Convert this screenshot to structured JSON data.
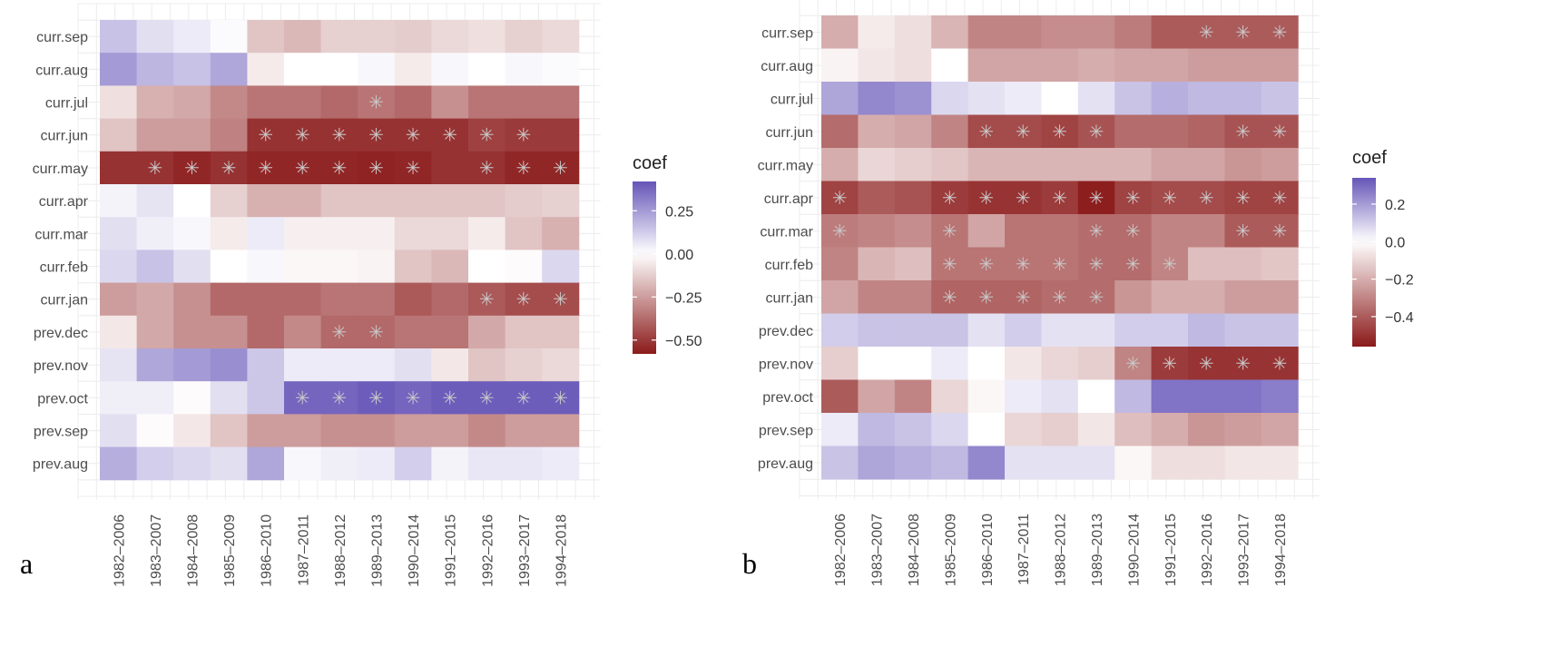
{
  "colors": {
    "low": "#8b1a1a",
    "mid": "#ffffff",
    "high": "#6655b8",
    "star": "#c8c8c8"
  },
  "chart_data": [
    {
      "type": "heatmap",
      "panel_label": "a",
      "legend": {
        "title": "coef",
        "ticks": [
          0.25,
          0.0,
          -0.25,
          -0.5
        ],
        "tick_labels": [
          "0.25",
          "0.00",
          "−0.25",
          "−0.50"
        ],
        "range": [
          -0.58,
          0.42
        ]
      },
      "x": [
        "1982–2006",
        "1983–2007",
        "1984–2008",
        "1985–2009",
        "1986–2010",
        "1987–2011",
        "1988–2012",
        "1989–2013",
        "1990–2014",
        "1991–2015",
        "1992–2016",
        "1993–2017",
        "1994–2018"
      ],
      "y": [
        "curr.sep",
        "curr.aug",
        "curr.jul",
        "curr.jun",
        "curr.may",
        "curr.apr",
        "curr.mar",
        "curr.feb",
        "curr.jan",
        "prev.dec",
        "prev.nov",
        "prev.oct",
        "prev.sep",
        "prev.aug"
      ],
      "values": [
        [
          0.15,
          0.08,
          0.05,
          0.01,
          -0.15,
          -0.18,
          -0.12,
          -0.12,
          -0.13,
          -0.1,
          -0.08,
          -0.12,
          -0.1
        ],
        [
          0.25,
          0.18,
          0.15,
          0.22,
          -0.05,
          0.0,
          0.0,
          0.02,
          -0.05,
          0.02,
          0.0,
          0.02,
          0.01
        ],
        [
          -0.08,
          -0.2,
          -0.22,
          -0.3,
          -0.35,
          -0.35,
          -0.38,
          -0.35,
          -0.38,
          -0.28,
          -0.35,
          -0.35,
          -0.35
        ],
        [
          -0.15,
          -0.25,
          -0.25,
          -0.32,
          -0.52,
          -0.52,
          -0.52,
          -0.52,
          -0.52,
          -0.52,
          -0.48,
          -0.5,
          -0.5
        ],
        [
          -0.52,
          -0.52,
          -0.55,
          -0.52,
          -0.55,
          -0.55,
          -0.55,
          -0.56,
          -0.55,
          -0.52,
          -0.52,
          -0.55,
          -0.55
        ],
        [
          0.03,
          0.07,
          0.0,
          -0.12,
          -0.2,
          -0.2,
          -0.15,
          -0.15,
          -0.15,
          -0.15,
          -0.15,
          -0.13,
          -0.12
        ],
        [
          0.08,
          0.04,
          0.02,
          -0.05,
          0.05,
          -0.04,
          -0.04,
          -0.04,
          -0.1,
          -0.1,
          -0.05,
          -0.15,
          -0.2
        ],
        [
          0.1,
          0.15,
          0.08,
          0.0,
          0.02,
          -0.02,
          -0.02,
          -0.03,
          -0.15,
          -0.18,
          0.0,
          -0.01,
          0.1
        ],
        [
          -0.25,
          -0.22,
          -0.28,
          -0.38,
          -0.38,
          -0.38,
          -0.35,
          -0.35,
          -0.42,
          -0.38,
          -0.42,
          -0.45,
          -0.45
        ],
        [
          -0.06,
          -0.22,
          -0.28,
          -0.28,
          -0.38,
          -0.3,
          -0.38,
          -0.38,
          -0.35,
          -0.35,
          -0.22,
          -0.15,
          -0.15
        ],
        [
          0.07,
          0.22,
          0.25,
          0.28,
          0.14,
          0.05,
          0.05,
          0.05,
          0.08,
          -0.06,
          -0.15,
          -0.12,
          -0.1
        ],
        [
          0.04,
          0.04,
          -0.01,
          0.08,
          0.14,
          0.38,
          0.38,
          0.4,
          0.38,
          0.4,
          0.4,
          0.4,
          0.4
        ],
        [
          0.08,
          -0.01,
          -0.06,
          -0.15,
          -0.25,
          -0.25,
          -0.28,
          -0.28,
          -0.25,
          -0.25,
          -0.3,
          -0.25,
          -0.25
        ],
        [
          0.2,
          0.12,
          0.1,
          0.08,
          0.22,
          0.02,
          0.04,
          0.05,
          0.12,
          0.03,
          0.06,
          0.06,
          0.05
        ]
      ],
      "significant": [
        [
          0,
          0,
          0,
          0,
          0,
          0,
          0,
          0,
          0,
          0,
          0,
          0,
          0
        ],
        [
          0,
          0,
          0,
          0,
          0,
          0,
          0,
          0,
          0,
          0,
          0,
          0,
          0
        ],
        [
          0,
          0,
          0,
          0,
          0,
          0,
          0,
          1,
          0,
          0,
          0,
          0,
          0
        ],
        [
          0,
          0,
          0,
          0,
          1,
          1,
          1,
          1,
          1,
          1,
          1,
          1,
          0
        ],
        [
          0,
          1,
          1,
          1,
          1,
          1,
          1,
          1,
          1,
          0,
          1,
          1,
          1
        ],
        [
          0,
          0,
          0,
          0,
          0,
          0,
          0,
          0,
          0,
          0,
          0,
          0,
          0
        ],
        [
          0,
          0,
          0,
          0,
          0,
          0,
          0,
          0,
          0,
          0,
          0,
          0,
          0
        ],
        [
          0,
          0,
          0,
          0,
          0,
          0,
          0,
          0,
          0,
          0,
          0,
          0,
          0
        ],
        [
          0,
          0,
          0,
          0,
          0,
          0,
          0,
          0,
          0,
          0,
          1,
          1,
          1
        ],
        [
          0,
          0,
          0,
          0,
          0,
          0,
          1,
          1,
          0,
          0,
          0,
          0,
          0
        ],
        [
          0,
          0,
          0,
          0,
          0,
          0,
          0,
          0,
          0,
          0,
          0,
          0,
          0
        ],
        [
          0,
          0,
          0,
          0,
          0,
          1,
          1,
          1,
          1,
          1,
          1,
          1,
          1
        ],
        [
          0,
          0,
          0,
          0,
          0,
          0,
          0,
          0,
          0,
          0,
          0,
          0,
          0
        ],
        [
          0,
          0,
          0,
          0,
          0,
          0,
          0,
          0,
          0,
          0,
          0,
          0,
          0
        ]
      ]
    },
    {
      "type": "heatmap",
      "panel_label": "b",
      "legend": {
        "title": "coef",
        "ticks": [
          0.2,
          0.0,
          -0.2,
          -0.4
        ],
        "tick_labels": [
          "0.2",
          "0.0",
          "−0.2",
          "−0.4"
        ],
        "range": [
          -0.56,
          0.34
        ]
      },
      "x": [
        "1982–2006",
        "1983–2007",
        "1984–2008",
        "1985–2009",
        "1986–2010",
        "1987–2011",
        "1988–2012",
        "1989–2013",
        "1990–2014",
        "1991–2015",
        "1992–2016",
        "1993–2017",
        "1994–2018"
      ],
      "y": [
        "curr.sep",
        "curr.aug",
        "curr.jul",
        "curr.jun",
        "curr.may",
        "curr.apr",
        "curr.mar",
        "curr.feb",
        "curr.jan",
        "prev.dec",
        "prev.nov",
        "prev.oct",
        "prev.sep",
        "prev.aug"
      ],
      "values": [
        [
          -0.2,
          -0.05,
          -0.08,
          -0.18,
          -0.3,
          -0.3,
          -0.28,
          -0.28,
          -0.32,
          -0.4,
          -0.4,
          -0.4,
          -0.4
        ],
        [
          -0.03,
          -0.06,
          -0.08,
          0.0,
          -0.22,
          -0.22,
          -0.22,
          -0.2,
          -0.22,
          -0.22,
          -0.24,
          -0.24,
          -0.24
        ],
        [
          0.18,
          0.24,
          0.22,
          0.08,
          0.06,
          0.04,
          0.0,
          0.06,
          0.12,
          0.16,
          0.14,
          0.14,
          0.12
        ],
        [
          -0.36,
          -0.2,
          -0.22,
          -0.3,
          -0.44,
          -0.44,
          -0.46,
          -0.42,
          -0.36,
          -0.36,
          -0.38,
          -0.42,
          -0.42
        ],
        [
          -0.2,
          -0.1,
          -0.12,
          -0.14,
          -0.18,
          -0.18,
          -0.18,
          -0.18,
          -0.18,
          -0.22,
          -0.22,
          -0.26,
          -0.24
        ],
        [
          -0.46,
          -0.4,
          -0.42,
          -0.48,
          -0.5,
          -0.5,
          -0.48,
          -0.55,
          -0.46,
          -0.44,
          -0.44,
          -0.46,
          -0.46
        ],
        [
          -0.32,
          -0.3,
          -0.28,
          -0.34,
          -0.22,
          -0.34,
          -0.34,
          -0.36,
          -0.36,
          -0.3,
          -0.3,
          -0.4,
          -0.4
        ],
        [
          -0.3,
          -0.18,
          -0.16,
          -0.34,
          -0.34,
          -0.34,
          -0.34,
          -0.36,
          -0.36,
          -0.3,
          -0.16,
          -0.16,
          -0.14
        ],
        [
          -0.22,
          -0.3,
          -0.3,
          -0.38,
          -0.38,
          -0.38,
          -0.36,
          -0.36,
          -0.26,
          -0.2,
          -0.2,
          -0.24,
          -0.24
        ],
        [
          0.1,
          0.12,
          0.12,
          0.12,
          0.06,
          0.1,
          0.06,
          0.06,
          0.1,
          0.1,
          0.14,
          0.12,
          0.12
        ],
        [
          -0.12,
          0.0,
          0.0,
          0.04,
          0.0,
          -0.06,
          -0.1,
          -0.12,
          -0.3,
          -0.48,
          -0.5,
          -0.5,
          -0.5
        ],
        [
          -0.4,
          -0.22,
          -0.3,
          -0.1,
          -0.02,
          0.04,
          0.06,
          0.0,
          0.14,
          0.28,
          0.28,
          0.28,
          0.26
        ],
        [
          0.04,
          0.14,
          0.12,
          0.08,
          0.0,
          -0.1,
          -0.12,
          -0.06,
          -0.16,
          -0.2,
          -0.26,
          -0.24,
          -0.22
        ],
        [
          0.12,
          0.18,
          0.16,
          0.14,
          0.24,
          0.06,
          0.06,
          0.06,
          -0.02,
          -0.08,
          -0.08,
          -0.06,
          -0.06
        ]
      ],
      "significant": [
        [
          0,
          0,
          0,
          0,
          0,
          0,
          0,
          0,
          0,
          0,
          1,
          1,
          1
        ],
        [
          0,
          0,
          0,
          0,
          0,
          0,
          0,
          0,
          0,
          0,
          0,
          0,
          0
        ],
        [
          0,
          0,
          0,
          0,
          0,
          0,
          0,
          0,
          0,
          0,
          0,
          0,
          0
        ],
        [
          0,
          0,
          0,
          0,
          1,
          1,
          1,
          1,
          0,
          0,
          0,
          1,
          1
        ],
        [
          0,
          0,
          0,
          0,
          0,
          0,
          0,
          0,
          0,
          0,
          0,
          0,
          0
        ],
        [
          1,
          0,
          0,
          1,
          1,
          1,
          1,
          1,
          1,
          1,
          1,
          1,
          1
        ],
        [
          1,
          0,
          0,
          1,
          0,
          0,
          0,
          1,
          1,
          0,
          0,
          1,
          1
        ],
        [
          0,
          0,
          0,
          1,
          1,
          1,
          1,
          1,
          1,
          1,
          0,
          0,
          0
        ],
        [
          0,
          0,
          0,
          1,
          1,
          1,
          1,
          1,
          0,
          0,
          0,
          0,
          0
        ],
        [
          0,
          0,
          0,
          0,
          0,
          0,
          0,
          0,
          0,
          0,
          0,
          0,
          0
        ],
        [
          0,
          0,
          0,
          0,
          0,
          0,
          0,
          0,
          1,
          1,
          1,
          1,
          1
        ],
        [
          0,
          0,
          0,
          0,
          0,
          0,
          0,
          0,
          0,
          0,
          0,
          0,
          0
        ],
        [
          0,
          0,
          0,
          0,
          0,
          0,
          0,
          0,
          0,
          0,
          0,
          0,
          0
        ],
        [
          0,
          0,
          0,
          0,
          0,
          0,
          0,
          0,
          0,
          0,
          0,
          0,
          0
        ]
      ]
    }
  ]
}
